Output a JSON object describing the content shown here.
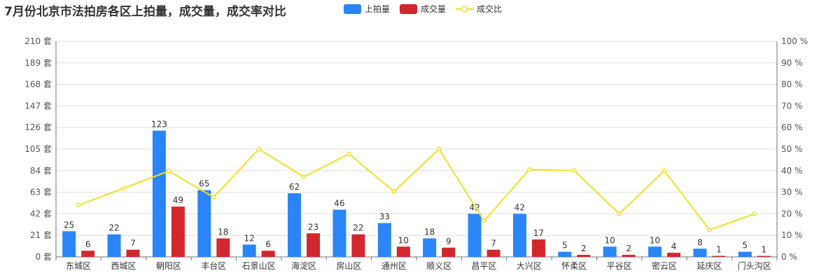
{
  "title": "7月份北京市法拍房各区上拍量，成交量，成交率对比",
  "legend": [
    {
      "name": "上拍量",
      "color": "#2a86f7",
      "kind": "bar"
    },
    {
      "name": "成交量",
      "color": "#d2282d",
      "kind": "bar"
    },
    {
      "name": "成交比",
      "color": "#f2df27",
      "kind": "line"
    }
  ],
  "chart_data": {
    "type": "bar",
    "categories": [
      "东城区",
      "西城区",
      "朝阳区",
      "丰台区",
      "石景山区",
      "海淀区",
      "房山区",
      "通州区",
      "顺义区",
      "昌平区",
      "大兴区",
      "怀柔区",
      "平谷区",
      "密云区",
      "延庆区",
      "门头沟区"
    ],
    "series": [
      {
        "name": "上拍量",
        "type": "bar",
        "axis": "left",
        "color": "#2a86f7",
        "values": [
          25,
          22,
          123,
          65,
          12,
          62,
          46,
          33,
          18,
          42,
          42,
          5,
          10,
          10,
          8,
          5
        ]
      },
      {
        "name": "成交量",
        "type": "bar",
        "axis": "left",
        "color": "#d2282d",
        "values": [
          6,
          7,
          49,
          18,
          6,
          23,
          22,
          10,
          9,
          7,
          17,
          2,
          2,
          4,
          1,
          1
        ]
      },
      {
        "name": "成交比",
        "type": "line",
        "axis": "right",
        "color": "#f2df27",
        "values": [
          24,
          31.8,
          39.8,
          27.7,
          50,
          37.1,
          47.8,
          30.3,
          50,
          16.7,
          40.5,
          40,
          20,
          40,
          12.5,
          20
        ]
      }
    ],
    "y_left": {
      "ticks": [
        0,
        21,
        42,
        63,
        84,
        105,
        126,
        147,
        168,
        189,
        210
      ],
      "tick_labels": [
        "0 套",
        "21 套",
        "42 套",
        "63 套",
        "84 套",
        "105 套",
        "126 套",
        "147 套",
        "168 套",
        "189 套",
        "210 套"
      ],
      "ylim": [
        0,
        210
      ]
    },
    "y_right": {
      "ticks": [
        0,
        10,
        20,
        30,
        40,
        50,
        60,
        70,
        80,
        90,
        100
      ],
      "tick_labels": [
        "0 %",
        "10 %",
        "20 %",
        "30 %",
        "40 %",
        "50 %",
        "60 %",
        "70 %",
        "80 %",
        "90 %",
        "100 %"
      ],
      "ylim": [
        0,
        100
      ]
    },
    "grid": true,
    "legend_position": "top-center"
  }
}
